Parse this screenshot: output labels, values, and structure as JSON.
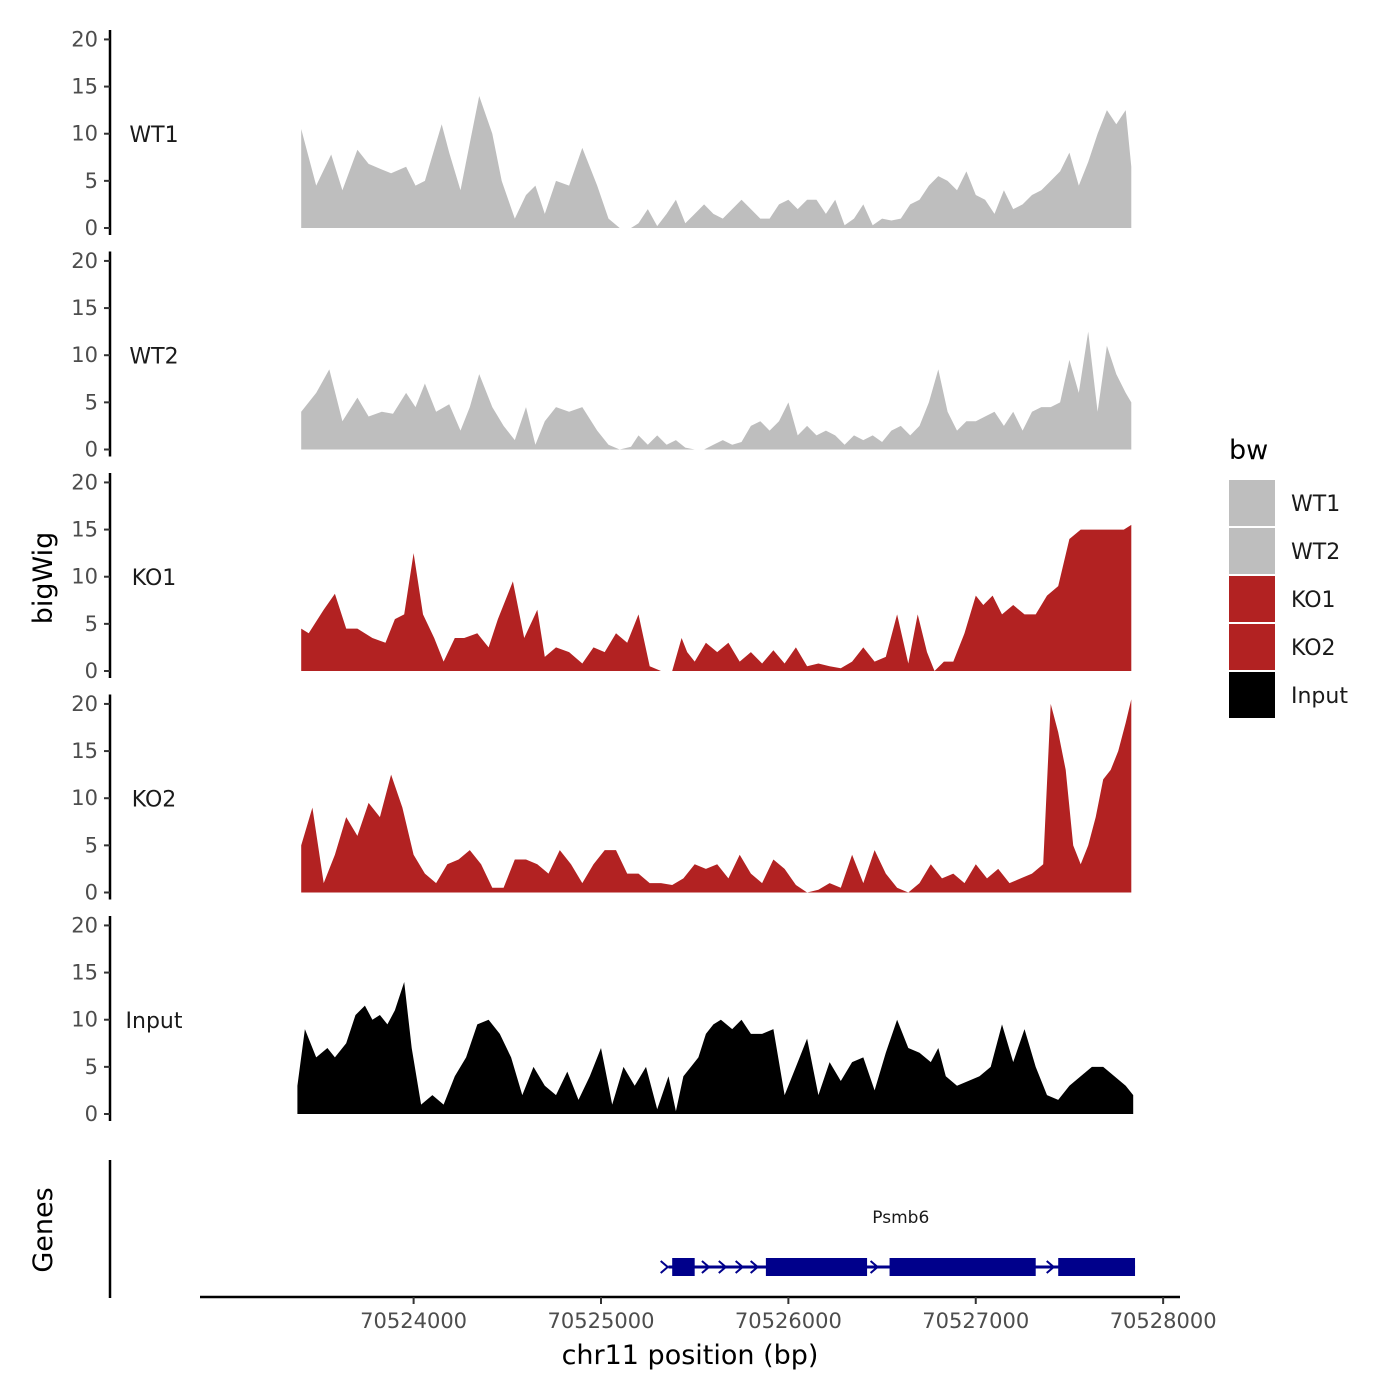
{
  "chart_data": {
    "type": "area",
    "ylabel": "bigWig",
    "xlabel": "chr11 position (bp)",
    "genes_label": "Genes",
    "x_range": [
      70522860,
      70528090
    ],
    "x_ticks": [
      70524000,
      70525000,
      70526000,
      70527000,
      70528000
    ],
    "x_tick_labels": [
      "70524000",
      "70525000",
      "70526000",
      "70527000",
      "70528000"
    ],
    "y_range": [
      0,
      21
    ],
    "y_ticks": [
      0,
      5,
      10,
      15,
      20
    ],
    "y_tick_labels": [
      "0",
      "5",
      "10",
      "15",
      "20"
    ],
    "legend": {
      "title": "bw",
      "position": "right",
      "entries": [
        {
          "label": "WT1",
          "color": "#bebebe"
        },
        {
          "label": "WT2",
          "color": "#bebebe"
        },
        {
          "label": "KO1",
          "color": "#b22222"
        },
        {
          "label": "KO2",
          "color": "#b22222"
        },
        {
          "label": "Input",
          "color": "#000000"
        }
      ]
    },
    "series": [
      {
        "name": "WT1",
        "color": "#bebebe",
        "x": [
          70523400,
          70523480,
          70523560,
          70523620,
          70523700,
          70523760,
          70523830,
          70523880,
          70523960,
          70524010,
          70524060,
          70524150,
          70524190,
          70524250,
          70524300,
          70524350,
          70524420,
          70524470,
          70524540,
          70524600,
          70524650,
          70524700,
          70524760,
          70524830,
          70524900,
          70524980,
          70525040,
          70525100,
          70525160,
          70525200,
          70525250,
          70525300,
          70525350,
          70525400,
          70525450,
          70525500,
          70525550,
          70525600,
          70525650,
          70525700,
          70525750,
          70525800,
          70525850,
          70525900,
          70525950,
          70526000,
          70526050,
          70526100,
          70526150,
          70526200,
          70526250,
          70526300,
          70526350,
          70526400,
          70526450,
          70526500,
          70526550,
          70526600,
          70526650,
          70526700,
          70526750,
          70526800,
          70526850,
          70526900,
          70526950,
          70527000,
          70527050,
          70527100,
          70527150,
          70527200,
          70527250,
          70527300,
          70527350,
          70527400,
          70527450,
          70527500,
          70527550,
          70527600,
          70527650,
          70527700,
          70527750,
          70527800,
          70527830
        ],
        "y": [
          10.5,
          4.5,
          7.8,
          4,
          8.3,
          6.8,
          6.2,
          5.8,
          6.5,
          4.5,
          5,
          11,
          8,
          4,
          9,
          14,
          10,
          5,
          1,
          3.5,
          4.5,
          1.5,
          5,
          4.5,
          8.5,
          4.5,
          1,
          0,
          0,
          0.5,
          2,
          0.2,
          1.5,
          3,
          0.5,
          1.5,
          2.5,
          1.5,
          1,
          2,
          3,
          2,
          1,
          1,
          2.5,
          3,
          2,
          3,
          3,
          1.5,
          3,
          0.3,
          1,
          2.5,
          0.3,
          1,
          0.8,
          1,
          2.5,
          3,
          4.5,
          5.5,
          5,
          4,
          6,
          3.5,
          3,
          1.5,
          4,
          2,
          2.5,
          3.5,
          4,
          5,
          6,
          8,
          4.5,
          7,
          10,
          12.5,
          11,
          12.5,
          6.5
        ]
      },
      {
        "name": "WT2",
        "color": "#bebebe",
        "x": [
          70523400,
          70523480,
          70523550,
          70523620,
          70523700,
          70523760,
          70523830,
          70523890,
          70523960,
          70524010,
          70524060,
          70524120,
          70524190,
          70524250,
          70524300,
          70524350,
          70524420,
          70524480,
          70524540,
          70524600,
          70524650,
          70524700,
          70524760,
          70524830,
          70524900,
          70524980,
          70525040,
          70525100,
          70525160,
          70525200,
          70525250,
          70525300,
          70525350,
          70525400,
          70525450,
          70525500,
          70525550,
          70525600,
          70525650,
          70525700,
          70525750,
          70525800,
          70525850,
          70525900,
          70525950,
          70526000,
          70526050,
          70526100,
          70526150,
          70526200,
          70526250,
          70526300,
          70526350,
          70526400,
          70526450,
          70526500,
          70526550,
          70526600,
          70526650,
          70526700,
          70526750,
          70526800,
          70526850,
          70526900,
          70526950,
          70527000,
          70527050,
          70527100,
          70527150,
          70527200,
          70527250,
          70527300,
          70527350,
          70527400,
          70527450,
          70527500,
          70527550,
          70527600,
          70527650,
          70527700,
          70527750,
          70527800,
          70527830
        ],
        "y": [
          4,
          6,
          8.5,
          3,
          5.5,
          3.5,
          4,
          3.8,
          6,
          4.5,
          7,
          4,
          4.8,
          2,
          4.5,
          8,
          4.5,
          2.5,
          1,
          4.5,
          0.5,
          3,
          4.5,
          4,
          4.5,
          2,
          0.5,
          0,
          0.3,
          1.5,
          0.5,
          1.5,
          0.5,
          1,
          0.2,
          0,
          0,
          0.5,
          1,
          0.5,
          0.8,
          2.5,
          3,
          2,
          3,
          5,
          1.5,
          2.5,
          1.5,
          2,
          1.5,
          0.5,
          1.5,
          1,
          1.5,
          0.8,
          2,
          2.5,
          1.5,
          2.5,
          5,
          8.5,
          4,
          2,
          3,
          3,
          3.5,
          4,
          2.5,
          4,
          2,
          4,
          4.5,
          4.5,
          5,
          9.5,
          6,
          12.5,
          4,
          11,
          8,
          6,
          5
        ]
      },
      {
        "name": "KO1",
        "color": "#b22222",
        "x": [
          70523400,
          70523440,
          70523520,
          70523580,
          70523640,
          70523700,
          70523780,
          70523850,
          70523900,
          70523950,
          70524000,
          70524050,
          70524110,
          70524160,
          70524220,
          70524270,
          70524340,
          70524400,
          70524450,
          70524530,
          70524590,
          70524660,
          70524700,
          70524760,
          70524830,
          70524900,
          70524960,
          70525020,
          70525080,
          70525140,
          70525200,
          70525260,
          70525320,
          70525380,
          70525430,
          70525460,
          70525500,
          70525560,
          70525620,
          70525680,
          70525740,
          70525800,
          70525860,
          70525920,
          70525980,
          70526040,
          70526100,
          70526160,
          70526220,
          70526280,
          70526340,
          70526400,
          70526460,
          70526520,
          70526580,
          70526640,
          70526690,
          70526740,
          70526780,
          70526830,
          70526880,
          70526940,
          70527000,
          70527040,
          70527090,
          70527140,
          70527200,
          70527260,
          70527320,
          70527380,
          70527440,
          70527500,
          70527560,
          70527620,
          70527680,
          70527740,
          70527790,
          70527830
        ],
        "y": [
          4.5,
          4,
          6.5,
          8.2,
          4.5,
          4.5,
          3.5,
          3,
          5.5,
          6,
          12.5,
          6,
          3.5,
          1,
          3.5,
          3.5,
          4,
          2.5,
          5.5,
          9.5,
          3.5,
          6.5,
          1.5,
          2.5,
          2,
          0.8,
          2.5,
          2,
          4,
          3,
          6,
          0.5,
          0,
          0,
          3.5,
          2,
          1,
          3,
          2,
          3,
          1,
          2,
          0.8,
          2.2,
          0.8,
          2.5,
          0.5,
          0.8,
          0.5,
          0.3,
          1,
          2.5,
          1,
          1.5,
          6,
          0.8,
          6,
          2,
          0,
          1,
          1,
          4,
          8,
          7,
          8,
          6,
          7,
          6,
          6,
          8,
          9,
          14,
          15,
          15,
          15,
          15,
          15,
          15.5
        ]
      },
      {
        "name": "KO2",
        "color": "#b22222",
        "x": [
          70523400,
          70523460,
          70523520,
          70523580,
          70523640,
          70523700,
          70523760,
          70523820,
          70523880,
          70523940,
          70524000,
          70524060,
          70524120,
          70524180,
          70524240,
          70524300,
          70524360,
          70524420,
          70524480,
          70524540,
          70524600,
          70524660,
          70524720,
          70524780,
          70524840,
          70524900,
          70524960,
          70525020,
          70525080,
          70525140,
          70525200,
          70525260,
          70525320,
          70525380,
          70525440,
          70525500,
          70525560,
          70525620,
          70525680,
          70525740,
          70525800,
          70525860,
          70525920,
          70525980,
          70526040,
          70526100,
          70526160,
          70526220,
          70526280,
          70526340,
          70526400,
          70526460,
          70526520,
          70526580,
          70526640,
          70526700,
          70526760,
          70526820,
          70526880,
          70526940,
          70527000,
          70527060,
          70527120,
          70527180,
          70527240,
          70527300,
          70527360,
          70527400,
          70527440,
          70527480,
          70527520,
          70527560,
          70527600,
          70527640,
          70527680,
          70527720,
          70527760,
          70527800,
          70527830
        ],
        "y": [
          5,
          9,
          1,
          4,
          8,
          6,
          9.5,
          8,
          12.5,
          9,
          4,
          2,
          1,
          3,
          3.5,
          4.5,
          3,
          0.5,
          0.5,
          3.5,
          3.5,
          3,
          2,
          4.5,
          3,
          1,
          3,
          4.5,
          4.5,
          2,
          2,
          1,
          1,
          0.8,
          1.5,
          3,
          2.5,
          3,
          1.5,
          4,
          2,
          1,
          3.5,
          2.5,
          0.8,
          0,
          0.3,
          1,
          0.5,
          4,
          1,
          4.5,
          2,
          0.5,
          0,
          1,
          3,
          1.5,
          2,
          1,
          3,
          1.5,
          2.5,
          1,
          1.5,
          2,
          3,
          20,
          17,
          13,
          5,
          3,
          5,
          8,
          12,
          13,
          15,
          18,
          20.5
        ]
      },
      {
        "name": "Input",
        "color": "#000000",
        "x": [
          70523380,
          70523420,
          70523480,
          70523540,
          70523580,
          70523640,
          70523690,
          70523740,
          70523780,
          70523820,
          70523860,
          70523900,
          70523950,
          70523990,
          70524040,
          70524100,
          70524160,
          70524220,
          70524280,
          70524340,
          70524400,
          70524460,
          70524520,
          70524580,
          70524640,
          70524700,
          70524760,
          70524820,
          70524880,
          70524940,
          70525000,
          70525060,
          70525120,
          70525180,
          70525240,
          70525300,
          70525360,
          70525400,
          70525440,
          70525480,
          70525520,
          70525560,
          70525600,
          70525640,
          70525700,
          70525750,
          70525800,
          70525860,
          70525920,
          70525980,
          70526040,
          70526100,
          70526160,
          70526220,
          70526280,
          70526340,
          70526400,
          70526460,
          70526520,
          70526580,
          70526640,
          70526700,
          70526760,
          70526800,
          70526840,
          70526900,
          70526960,
          70527020,
          70527080,
          70527140,
          70527200,
          70527260,
          70527320,
          70527380,
          70527440,
          70527500,
          70527560,
          70527620,
          70527680,
          70527740,
          70527800,
          70527840
        ],
        "y": [
          3,
          9,
          6,
          7,
          6,
          7.5,
          10.5,
          11.5,
          10,
          10.5,
          9.5,
          11,
          14,
          7,
          1,
          2,
          1,
          4,
          6,
          9.5,
          10,
          8.5,
          6,
          2,
          5,
          3,
          2,
          4.5,
          1.5,
          4,
          7,
          1,
          5,
          3,
          5,
          0.5,
          4,
          0.3,
          4,
          5,
          6,
          8.5,
          9.5,
          10,
          9,
          10,
          8.5,
          8.5,
          9,
          2,
          5,
          8,
          2,
          5.5,
          3.5,
          5.5,
          6,
          2.5,
          6.5,
          10,
          7,
          6.5,
          5.5,
          7,
          4,
          3,
          3.5,
          4,
          5,
          9.5,
          5.5,
          9,
          5,
          2,
          1.5,
          3,
          4,
          5,
          5,
          4,
          3,
          2
        ]
      }
    ],
    "gene": {
      "name": "Psmb6",
      "strand": "+",
      "start": 70525360,
      "end": 70527850,
      "exons": [
        [
          70525380,
          70525500
        ],
        [
          70525880,
          70526420
        ],
        [
          70526540,
          70527320
        ],
        [
          70527440,
          70527850
        ]
      ],
      "thick": [
        [
          70525880,
          70526420
        ],
        [
          70526540,
          70527320
        ],
        [
          70527440,
          70527850
        ]
      ]
    }
  }
}
